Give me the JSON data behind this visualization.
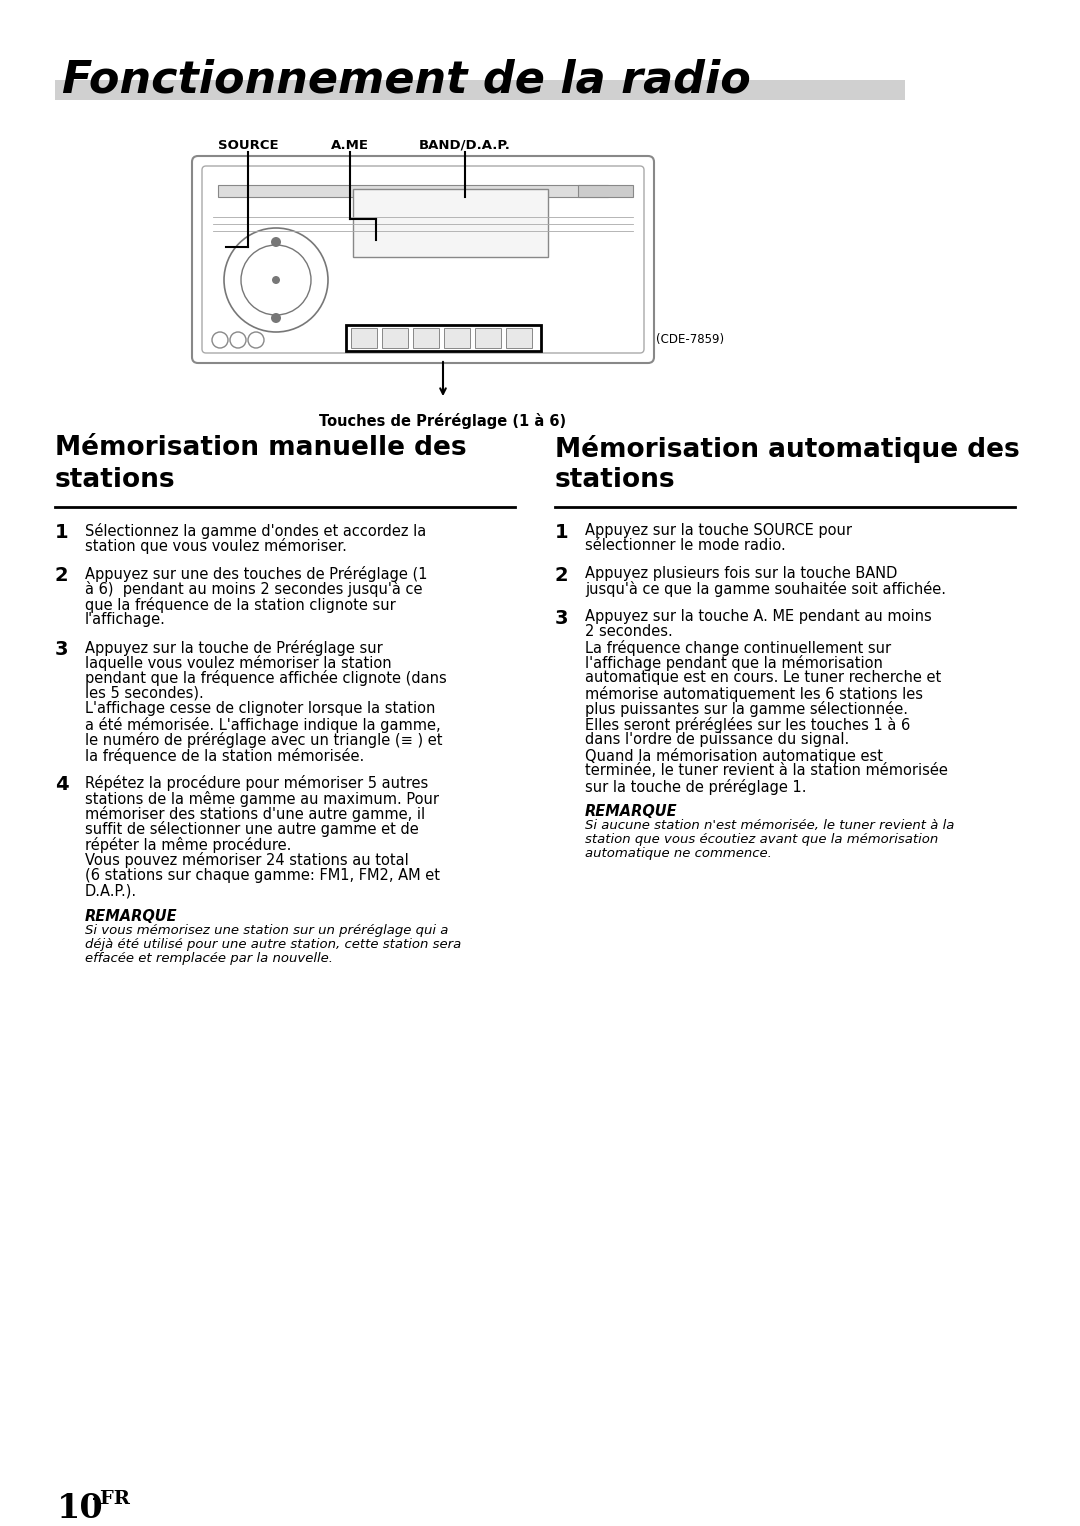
{
  "page_title": "Fonctionnement de la radio",
  "title_bar_color": "#d0d0d0",
  "background_color": "#ffffff",
  "page_number": "10",
  "page_suffix": "-FR",
  "diagram_model": "(CDE-7859)",
  "diagram_caption": "Touches de Préréglage (1 à 6)",
  "label_source": "SOURCE",
  "label_ame": "A.ME",
  "label_band": "BAND/D.A.P.",
  "left_section_title_line1": "Mémorisation manuelle des",
  "left_section_title_line2": "stations",
  "right_section_title_line1": "Mémorisation automatique des",
  "right_section_title_line2": "stations",
  "left_step1": "Sélectionnez la gamme d'ondes et accordez la\nstation que vous voulez mémoriser.",
  "left_step2_pre": "Appuyez sur une des touches de ",
  "left_step2_bold": "Préréglage (1\nà 6)",
  "left_step2_post": " pendant au moins 2 secondes jusqu'à ce\nque la fréquence de la station clignote sur\nl'affichage.",
  "left_step3_pre": "Appuyez sur la touche de ",
  "left_step3_bold": "Préréglage",
  "left_step3_post": " sur\nlaquelle vous voulez mémoriser la station\npendant que la fréquence affichée clignote (dans\nles 5 secondes).\nL'affichage cesse de clignoter lorsque la station\na été mémorisée. L'affichage indique la gamme,\nle numéro de préréglage avec un triangle (≡ ) et\nla fréquence de la station mémorisée.",
  "left_step4": "Répétez la procédure pour mémoriser 5 autres\nstations de la même gamme au maximum. Pour\nmémoriser des stations d'une autre gamme, il\nsuffit de sélectionner une autre gamme et de\nrépéter la même procédure.\nVous pouvez mémoriser 24 stations au total\n(6 stations sur chaque gamme: FM1, FM2, AM et\nD.A.P.).",
  "left_note_title": "REMARQUE",
  "left_note_text": "Si vous mémorisez une station sur un préréglage qui a\ndéjà été utilisé pour une autre station, cette station sera\neffacée et remplacée par la nouvelle.",
  "right_step1_pre": "Appuyez sur la touche ",
  "right_step1_bold": "SOURCE",
  "right_step1_post": " pour\nsélectionner le mode radio.",
  "right_step2_pre": "Appuyez plusieurs fois sur la touche ",
  "right_step2_bold": "BAND",
  "right_step2_post": "\njusqu'à ce que la gamme souhaitée soit affichée.",
  "right_step3_pre": "Appuyez sur la touche ",
  "right_step3_bold": "A. ME",
  "right_step3_post": " pendant au moins\n2 secondes.\nLa fréquence change continuellement sur\nl'affichage pendant que la mémorisation\nautomatique est en cours. Le tuner recherche et\nmémorise automatiquement les 6 stations les\nplus puissantes sur la gamme sélectionnée.\nElles seront préréglées sur les touches 1 à 6\ndans l'ordre de puissance du signal.\nQuand la mémorisation automatique est\nterminée, le tuner revient à la station mémorisée\nsur la touche de préréglage 1.",
  "right_note_title": "REMARQUE",
  "right_note_text": "Si aucune station n'est mémorisée, le tuner revient à la\nstation que vous écoutiez avant que la mémorisation\nautomatique ne commence."
}
